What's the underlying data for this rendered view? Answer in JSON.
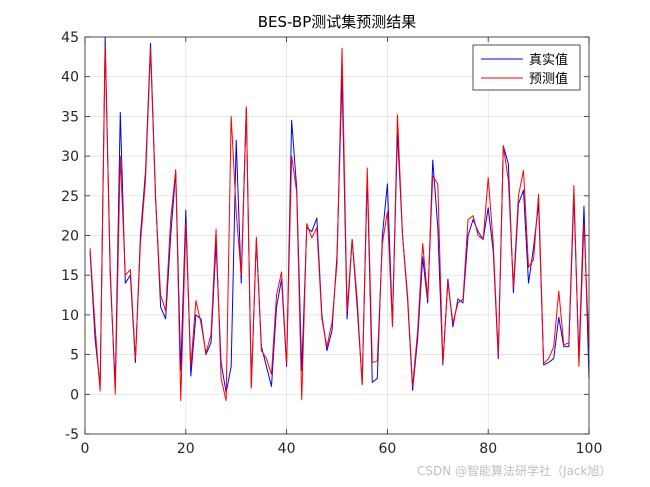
{
  "chart_data": {
    "type": "line",
    "title": "BES-BP测试集预测结果",
    "xlabel": "",
    "ylabel": "",
    "xlim": [
      0,
      100
    ],
    "ylim": [
      -5,
      45
    ],
    "xticks": [
      0,
      20,
      40,
      60,
      80,
      100
    ],
    "yticks": [
      -5,
      0,
      5,
      10,
      15,
      20,
      25,
      30,
      35,
      40,
      45
    ],
    "xtick_labels": [
      "0",
      "20",
      "40",
      "60",
      "80",
      "100"
    ],
    "ytick_labels": [
      "-5",
      "0",
      "5",
      "10",
      "15",
      "20",
      "25",
      "30",
      "35",
      "40",
      "45"
    ],
    "grid": true,
    "legend_position": "top-right",
    "x": [
      1,
      2,
      3,
      4,
      5,
      6,
      7,
      8,
      9,
      10,
      11,
      12,
      13,
      14,
      15,
      16,
      17,
      18,
      19,
      20,
      21,
      22,
      23,
      24,
      25,
      26,
      27,
      28,
      29,
      30,
      31,
      32,
      33,
      34,
      35,
      36,
      37,
      38,
      39,
      40,
      41,
      42,
      43,
      44,
      45,
      46,
      47,
      48,
      49,
      50,
      51,
      52,
      53,
      54,
      55,
      56,
      57,
      58,
      59,
      60,
      61,
      62,
      63,
      64,
      65,
      66,
      67,
      68,
      69,
      70,
      71,
      72,
      73,
      74,
      75,
      76,
      77,
      78,
      79,
      80,
      81,
      82,
      83,
      84,
      85,
      86,
      87,
      88,
      89,
      90,
      91,
      92,
      93,
      94,
      95,
      96,
      97,
      98,
      99,
      100
    ],
    "series": [
      {
        "name": "真实值",
        "color": "#0000ff",
        "values": [
          18.0,
          7.0,
          1.0,
          45.0,
          15.0,
          1.0,
          35.5,
          14.0,
          15.0,
          4.0,
          20.0,
          28.0,
          44.2,
          25.0,
          11.0,
          9.5,
          20.0,
          28.0,
          3.0,
          23.2,
          2.3,
          10.0,
          9.5,
          5.0,
          6.5,
          19.0,
          4.0,
          0.2,
          3.5,
          32.0,
          14.0,
          36.0,
          1.0,
          19.5,
          6.0,
          3.5,
          1.0,
          11.0,
          14.5,
          3.5,
          34.5,
          26.0,
          3.0,
          21.0,
          20.5,
          22.2,
          10.0,
          5.5,
          8.0,
          17.5,
          40.0,
          9.5,
          19.5,
          11.0,
          1.3,
          27.5,
          1.5,
          2.0,
          20.0,
          26.5,
          9.0,
          33.0,
          20.0,
          12.0,
          0.5,
          7.0,
          17.3,
          11.5,
          29.5,
          21.0,
          3.7,
          14.5,
          8.5,
          12.0,
          11.5,
          20.0,
          22.0,
          20.5,
          19.5,
          23.5,
          18.0,
          4.5,
          31.3,
          29.0,
          12.8,
          24.0,
          25.7,
          14.0,
          18.5,
          24.0,
          3.7,
          4.0,
          4.5,
          9.7,
          6.0,
          6.0,
          25.0,
          4.5,
          23.7,
          2.0
        ]
      },
      {
        "name": "预测值",
        "color": "#ff0000",
        "values": [
          18.4,
          8.5,
          0.4,
          44.0,
          16.0,
          0.0,
          30.0,
          15.0,
          15.7,
          4.5,
          19.0,
          27.0,
          43.5,
          24.5,
          12.5,
          10.5,
          22.0,
          28.3,
          -0.8,
          21.5,
          3.5,
          11.8,
          9.0,
          5.2,
          7.5,
          20.8,
          2.0,
          -0.8,
          35.0,
          23.0,
          15.0,
          36.2,
          0.8,
          19.8,
          5.5,
          4.5,
          2.5,
          12.5,
          15.4,
          3.8,
          30.0,
          25.5,
          -0.7,
          21.5,
          19.7,
          21.0,
          9.5,
          6.0,
          9.0,
          16.5,
          43.6,
          10.5,
          19.5,
          12.0,
          1.2,
          28.5,
          4.0,
          4.2,
          19.0,
          23.0,
          8.5,
          35.2,
          20.0,
          12.5,
          1.0,
          8.0,
          19.0,
          12.0,
          27.5,
          26.5,
          4.0,
          14.0,
          9.0,
          11.5,
          12.0,
          22.0,
          22.5,
          20.0,
          19.5,
          27.3,
          19.0,
          5.0,
          31.3,
          27.0,
          13.5,
          25.0,
          28.2,
          16.0,
          17.0,
          25.2,
          3.9,
          4.5,
          6.0,
          13.0,
          6.2,
          6.5,
          26.3,
          3.5,
          21.5,
          6.0
        ]
      }
    ]
  },
  "watermark": "CSDN @智能算法研学社（Jack旭）"
}
